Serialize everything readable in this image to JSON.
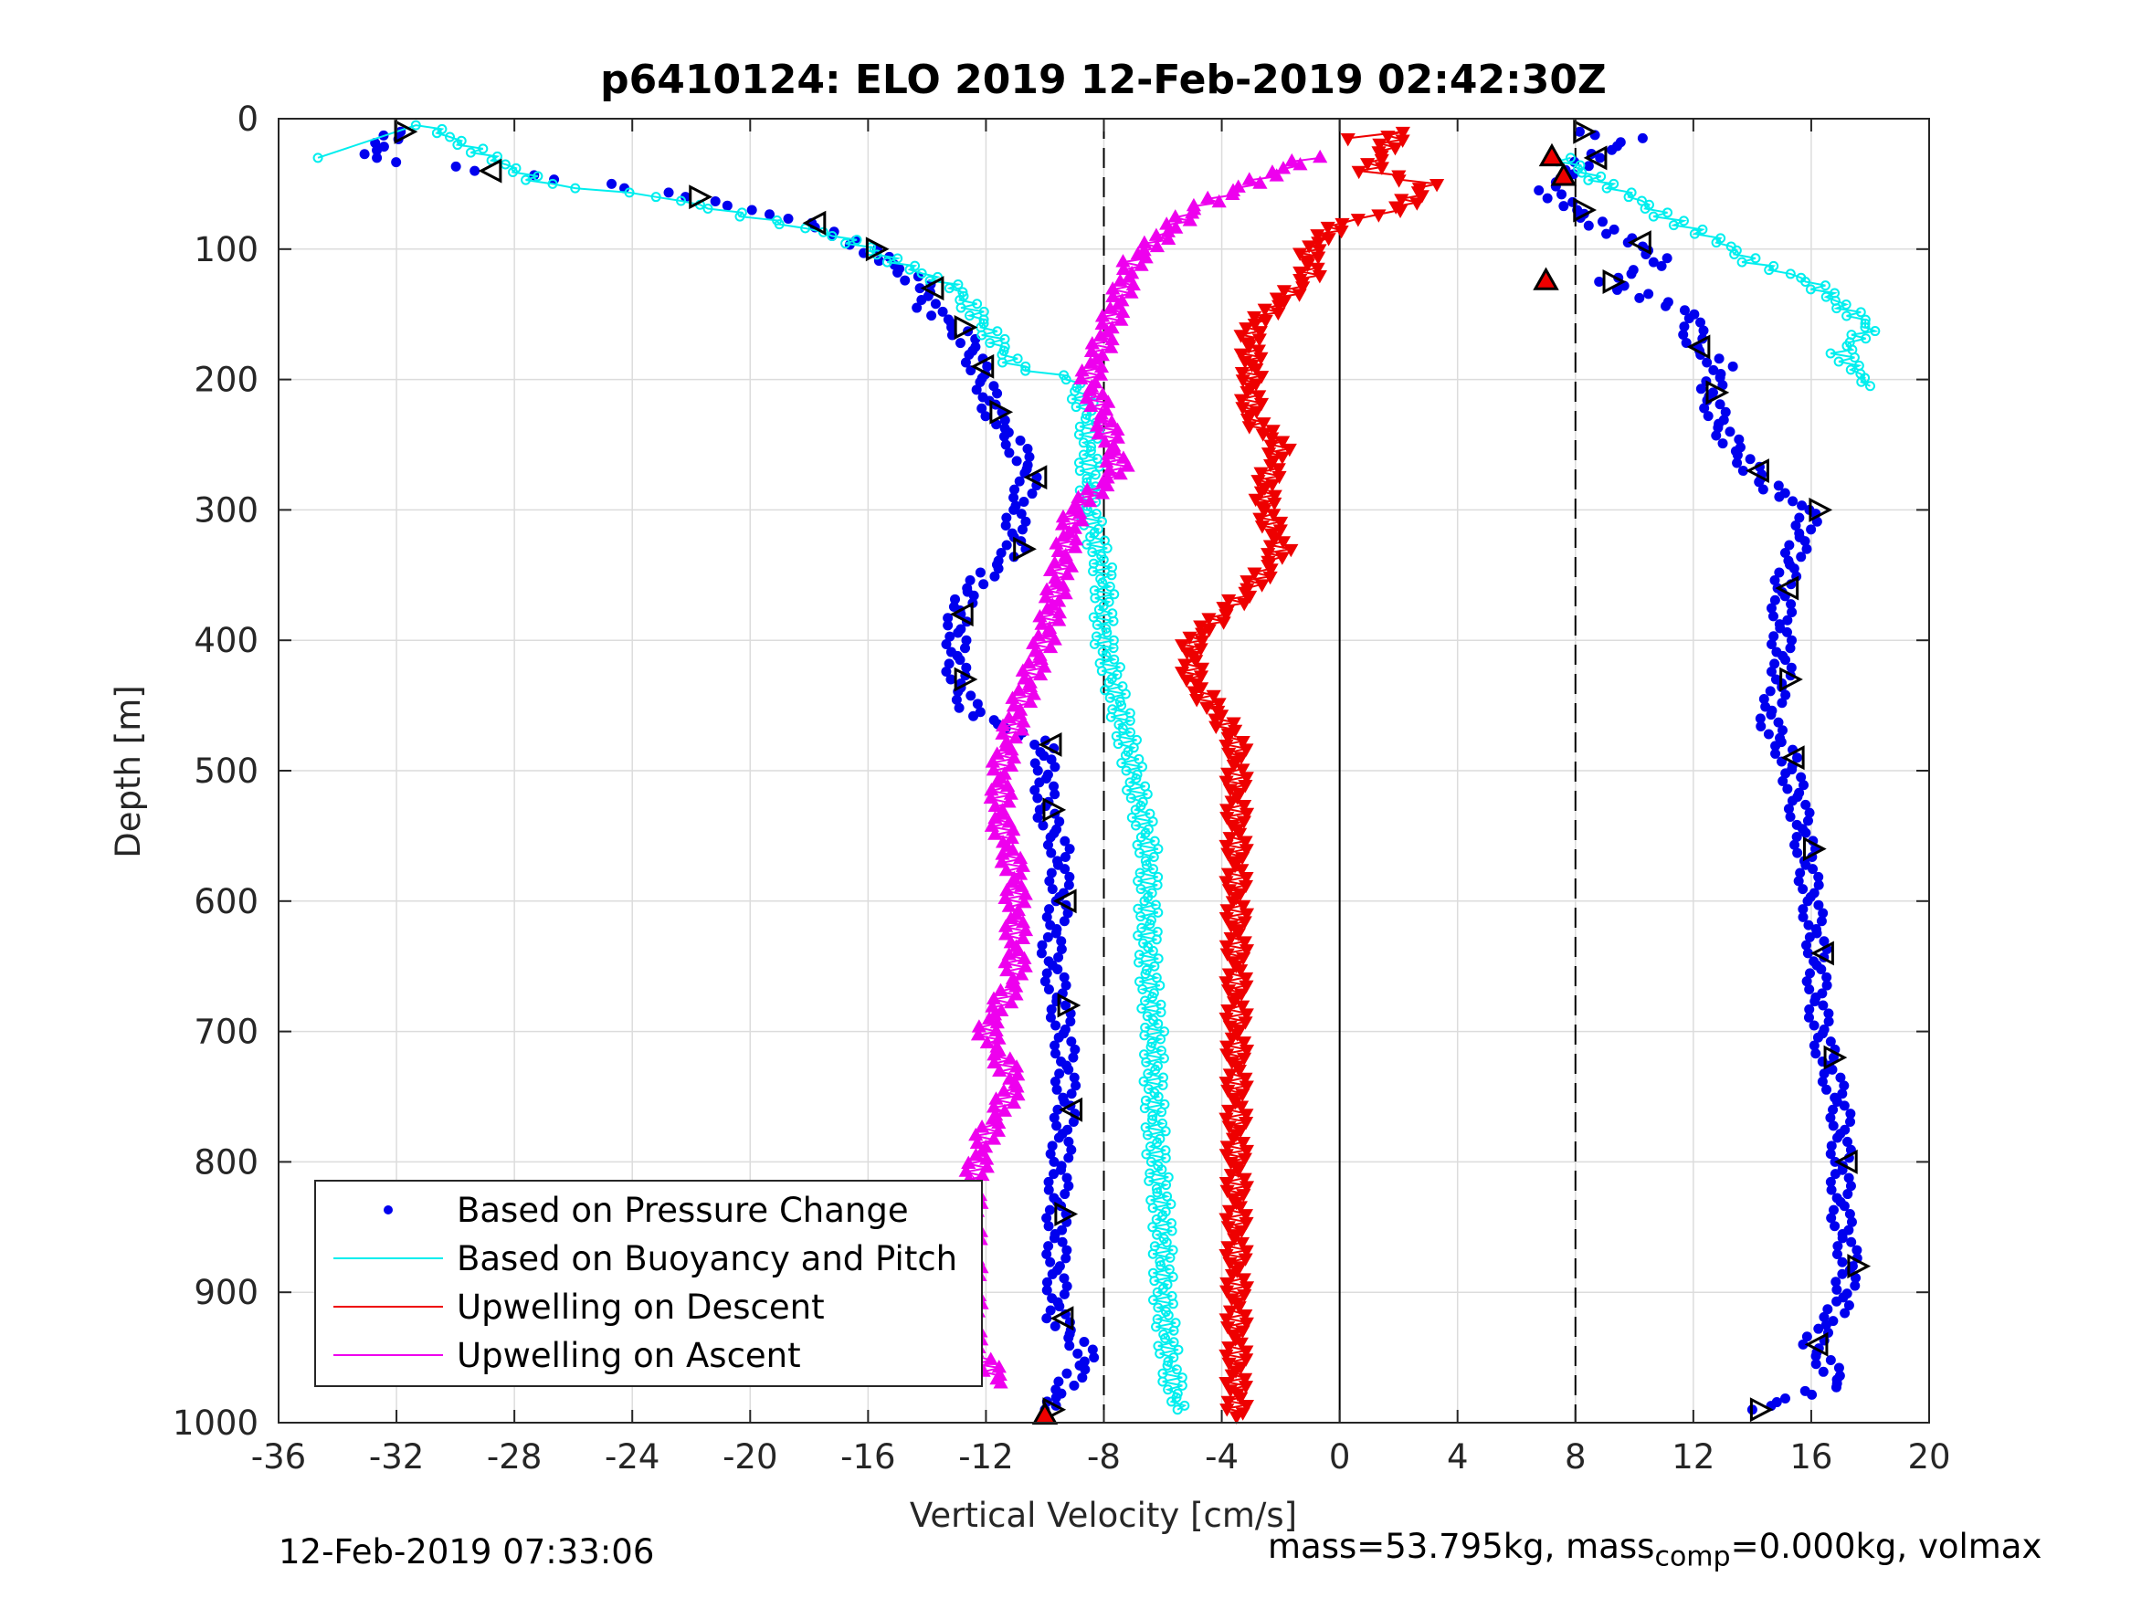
{
  "footer": {
    "timestamp": "12-Feb-2019 07:33:06",
    "mass_text": "mass=53.795kg, mass",
    "mass_sub": "comp",
    "mass_text2": "=0.000kg, volmax"
  },
  "chart_data": {
    "type": "scatter",
    "title": "p6410124: ELO 2019 12-Feb-2019 02:42:30Z",
    "xlabel": "Vertical Velocity [cm/s]",
    "ylabel": "Depth [m]",
    "xlim": [
      -36,
      20
    ],
    "ylim": [
      0,
      1000
    ],
    "y_reversed": true,
    "xticks": [
      -36,
      -32,
      -28,
      -24,
      -20,
      -16,
      -12,
      -8,
      -4,
      0,
      4,
      8,
      12,
      16,
      20
    ],
    "yticks": [
      0,
      100,
      200,
      300,
      400,
      500,
      600,
      700,
      800,
      900,
      1000
    ],
    "grid": true,
    "reference_lines": [
      {
        "x": -8,
        "style": "dashed",
        "color": "#000000"
      },
      {
        "x": 0,
        "style": "solid",
        "color": "#000000"
      },
      {
        "x": 8,
        "style": "dashed",
        "color": "#000000"
      }
    ],
    "legend_position": "bottom-left",
    "series": [
      {
        "name": "Based on Pressure Change",
        "color": "#0000ee",
        "marker": "dot",
        "descent": [
          [
            -32,
            10
          ],
          [
            -33,
            30
          ],
          [
            -29,
            40
          ],
          [
            -25,
            50
          ],
          [
            -22,
            60
          ],
          [
            -20,
            70
          ],
          [
            -18,
            80
          ],
          [
            -17,
            90
          ],
          [
            -16,
            100
          ],
          [
            -15,
            115
          ],
          [
            -14,
            130
          ],
          [
            -14,
            145
          ],
          [
            -13,
            160
          ],
          [
            -12.5,
            175
          ],
          [
            -12.3,
            190
          ],
          [
            -12,
            205
          ],
          [
            -11.8,
            225
          ],
          [
            -11,
            250
          ],
          [
            -10.5,
            275
          ],
          [
            -11,
            300
          ],
          [
            -11,
            330
          ],
          [
            -12.5,
            360
          ],
          [
            -13,
            380
          ],
          [
            -13,
            400
          ],
          [
            -13,
            430
          ],
          [
            -12.5,
            455
          ],
          [
            -10,
            480
          ],
          [
            -10,
            500
          ],
          [
            -10,
            530
          ],
          [
            -9.5,
            560
          ],
          [
            -9.5,
            600
          ],
          [
            -9.8,
            640
          ],
          [
            -9.5,
            680
          ],
          [
            -9.3,
            720
          ],
          [
            -9.3,
            760
          ],
          [
            -9.5,
            800
          ],
          [
            -9.6,
            840
          ],
          [
            -9.6,
            880
          ],
          [
            -9.6,
            920
          ],
          [
            -8.5,
            950
          ],
          [
            -10,
            990
          ]
        ],
        "ascent": [
          [
            8,
            10
          ],
          [
            10,
            15
          ],
          [
            8.5,
            30
          ],
          [
            7,
            55
          ],
          [
            8,
            70
          ],
          [
            9,
            85
          ],
          [
            10,
            95
          ],
          [
            11,
            110
          ],
          [
            9,
            125
          ],
          [
            12,
            150
          ],
          [
            12,
            175
          ],
          [
            13,
            190
          ],
          [
            12.5,
            210
          ],
          [
            13,
            240
          ],
          [
            14,
            270
          ],
          [
            15,
            290
          ],
          [
            16,
            300
          ],
          [
            15.5,
            330
          ],
          [
            15,
            360
          ],
          [
            15,
            400
          ],
          [
            15,
            430
          ],
          [
            14.5,
            460
          ],
          [
            15.2,
            490
          ],
          [
            15.5,
            520
          ],
          [
            15.8,
            560
          ],
          [
            16,
            600
          ],
          [
            16.2,
            640
          ],
          [
            16.2,
            680
          ],
          [
            16.5,
            720
          ],
          [
            17,
            760
          ],
          [
            17,
            800
          ],
          [
            17,
            840
          ],
          [
            17.3,
            880
          ],
          [
            17,
            910
          ],
          [
            16,
            940
          ],
          [
            17,
            970
          ],
          [
            14,
            990
          ]
        ]
      },
      {
        "name": "Based on Buoyancy and Pitch",
        "color": "#00eeee",
        "marker": "circle-line",
        "descent": [
          [
            -35,
            30
          ],
          [
            -31,
            5
          ],
          [
            -27,
            50
          ],
          [
            -23,
            60
          ],
          [
            -20,
            75
          ],
          [
            -17,
            90
          ],
          [
            -15,
            110
          ],
          [
            -13,
            130
          ],
          [
            -12,
            160
          ],
          [
            -11,
            190
          ],
          [
            -9,
            200
          ],
          [
            -8.5,
            230
          ],
          [
            -8.5,
            270
          ],
          [
            -8.5,
            300
          ],
          [
            -8,
            350
          ],
          [
            -8,
            400
          ],
          [
            -7.5,
            450
          ],
          [
            -7,
            500
          ],
          [
            -6.5,
            560
          ],
          [
            -6.5,
            600
          ],
          [
            -6.5,
            650
          ],
          [
            -6.3,
            700
          ],
          [
            -6.3,
            750
          ],
          [
            -6.2,
            800
          ],
          [
            -6,
            850
          ],
          [
            -6,
            900
          ],
          [
            -5.8,
            950
          ],
          [
            -5.5,
            990
          ]
        ],
        "ascent": [
          [
            7.5,
            30
          ],
          [
            9,
            50
          ],
          [
            10,
            60
          ],
          [
            11,
            75
          ],
          [
            12,
            85
          ],
          [
            13,
            95
          ],
          [
            14,
            110
          ],
          [
            16,
            125
          ],
          [
            18,
            160
          ],
          [
            17,
            180
          ],
          [
            18,
            205
          ]
        ]
      },
      {
        "name": "Upwelling on Descent",
        "color": "#ee0000",
        "marker": "triangle-down",
        "values": [
          [
            0,
            15
          ],
          [
            2,
            10
          ],
          [
            1,
            40
          ],
          [
            3,
            50
          ],
          [
            2,
            70
          ],
          [
            0,
            80
          ],
          [
            -1,
            100
          ],
          [
            -1,
            120
          ],
          [
            -2,
            140
          ],
          [
            -3,
            160
          ],
          [
            -3,
            180
          ],
          [
            -3,
            200
          ],
          [
            -3,
            230
          ],
          [
            -2,
            250
          ],
          [
            -2.5,
            280
          ],
          [
            -2.5,
            300
          ],
          [
            -2,
            330
          ],
          [
            -3,
            360
          ],
          [
            -4,
            380
          ],
          [
            -5,
            400
          ],
          [
            -5,
            430
          ],
          [
            -4,
            460
          ],
          [
            -3.5,
            480
          ],
          [
            -3.5,
            520
          ],
          [
            -3.5,
            560
          ],
          [
            -3.5,
            600
          ],
          [
            -3.5,
            640
          ],
          [
            -3.5,
            680
          ],
          [
            -3.5,
            720
          ],
          [
            -3.5,
            760
          ],
          [
            -3.5,
            800
          ],
          [
            -3.5,
            840
          ],
          [
            -3.5,
            880
          ],
          [
            -3.5,
            920
          ],
          [
            -3.5,
            960
          ],
          [
            -3.5,
            995
          ]
        ]
      },
      {
        "name": "Upwelling on Ascent",
        "color": "#ee00ee",
        "marker": "triangle-up",
        "values": [
          [
            -1,
            30
          ],
          [
            -3,
            50
          ],
          [
            -5,
            70
          ],
          [
            -6,
            90
          ],
          [
            -7,
            110
          ],
          [
            -7.5,
            140
          ],
          [
            -8,
            170
          ],
          [
            -8.5,
            200
          ],
          [
            -8,
            230
          ],
          [
            -7.5,
            270
          ],
          [
            -9,
            300
          ],
          [
            -9.5,
            350
          ],
          [
            -10,
            400
          ],
          [
            -10.5,
            430
          ],
          [
            -11,
            460
          ],
          [
            -11.5,
            500
          ],
          [
            -11.5,
            540
          ],
          [
            -11,
            580
          ],
          [
            -11,
            620
          ],
          [
            -11,
            660
          ],
          [
            -12,
            700
          ],
          [
            -11,
            740
          ],
          [
            -12,
            780
          ],
          [
            -12.5,
            820
          ],
          [
            -12.5,
            860
          ],
          [
            -12.5,
            900
          ],
          [
            -12.5,
            940
          ],
          [
            -11.5,
            970
          ]
        ]
      }
    ]
  }
}
